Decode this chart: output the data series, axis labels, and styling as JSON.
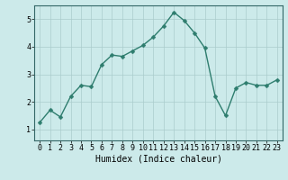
{
  "x": [
    0,
    1,
    2,
    3,
    4,
    5,
    6,
    7,
    8,
    9,
    10,
    11,
    12,
    13,
    14,
    15,
    16,
    17,
    18,
    19,
    20,
    21,
    22,
    23
  ],
  "y": [
    1.25,
    1.7,
    1.45,
    2.2,
    2.6,
    2.55,
    3.35,
    3.7,
    3.65,
    3.85,
    4.05,
    4.35,
    4.75,
    5.25,
    4.95,
    4.5,
    3.95,
    2.2,
    1.5,
    2.5,
    2.7,
    2.6,
    2.6,
    2.8
  ],
  "line_color": "#2e7d6e",
  "marker": "D",
  "marker_size": 2.5,
  "linewidth": 1.0,
  "xlabel": "Humidex (Indice chaleur)",
  "xlabel_fontsize": 7,
  "xlabel_fontfamily": "monospace",
  "ylim": [
    0.6,
    5.5
  ],
  "xlim": [
    -0.5,
    23.5
  ],
  "yticks": [
    1,
    2,
    3,
    4,
    5
  ],
  "xticks": [
    0,
    1,
    2,
    3,
    4,
    5,
    6,
    7,
    8,
    9,
    10,
    11,
    12,
    13,
    14,
    15,
    16,
    17,
    18,
    19,
    20,
    21,
    22,
    23
  ],
  "background_color": "#cceaea",
  "grid_color": "#aacccc",
  "grid_linewidth": 0.5,
  "tick_fontsize": 6,
  "tick_fontfamily": "monospace",
  "spine_color": "#336666",
  "spine_linewidth": 0.8
}
